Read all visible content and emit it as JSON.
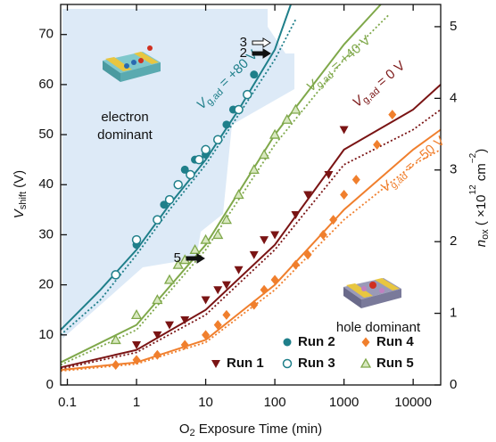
{
  "chart_data": {
    "type": "scatter",
    "x_label": {
      "main": "O",
      "sub": "2",
      "rest": " Exposure Time (min)"
    },
    "y_label": {
      "main": "V",
      "sub": "shift",
      "rest": " (V)"
    },
    "y2_label": {
      "main": "n",
      "sub": "ox",
      "rest": " ( ×10",
      "sup": "12",
      "unit": " cm",
      "sup2": "−2",
      "close": ")"
    },
    "log_x": true,
    "xlim": [
      0.08,
      25000
    ],
    "xticks": [
      0.1,
      1,
      10,
      100,
      1000,
      10000
    ],
    "ylim": [
      0,
      76
    ],
    "yticks": [
      0,
      10,
      20,
      30,
      40,
      50,
      60,
      70
    ],
    "y2lim": [
      0,
      5.31
    ],
    "y2ticks": [
      0,
      1,
      2,
      3,
      4,
      5
    ],
    "series": [
      {
        "name": "Run 2",
        "color": "#1f7f8a",
        "marker": "circle",
        "x": [
          1,
          2.5,
          3,
          5,
          7,
          10,
          20,
          25,
          50
        ],
        "values": [
          28,
          36,
          37,
          43,
          45,
          46,
          52,
          55,
          62
        ]
      },
      {
        "name": "Run 4",
        "color": "#f07f2d",
        "marker": "diamond",
        "x": [
          0.5,
          1,
          2,
          5,
          10,
          15,
          20,
          50,
          70,
          100,
          200,
          300,
          500,
          700,
          1000,
          1500,
          3000,
          5000
        ],
        "values": [
          4,
          5,
          6,
          8,
          10,
          12,
          14,
          16,
          19,
          21,
          24,
          26,
          30,
          33,
          38,
          41,
          48,
          54
        ]
      },
      {
        "name": "Run 1",
        "color": "#7a1414",
        "marker": "down-triangle",
        "x": [
          1,
          2,
          3,
          5,
          10,
          15,
          20,
          30,
          50,
          70,
          100,
          200,
          300,
          600,
          1000
        ],
        "values": [
          8,
          10,
          12,
          13,
          17,
          19,
          20,
          23,
          26,
          29,
          30,
          34,
          38,
          42,
          51
        ]
      },
      {
        "name": "Run 3",
        "color": "#1f7f8a",
        "marker": "open-circle",
        "x": [
          0.5,
          1,
          2,
          3,
          4,
          6,
          8,
          10,
          15,
          30,
          40
        ],
        "values": [
          22,
          29,
          33,
          37,
          40,
          42,
          45,
          47,
          49,
          55,
          58
        ]
      },
      {
        "name": "Run 5",
        "color": "#7fa84a",
        "marker": "triangle",
        "x": [
          0.5,
          1,
          2,
          3,
          4,
          5,
          7,
          10,
          15,
          20,
          30,
          50,
          70,
          100,
          150,
          200
        ],
        "values": [
          9,
          14,
          17,
          21,
          24,
          25,
          27,
          29,
          30,
          33,
          38,
          43,
          46,
          50,
          53,
          55
        ]
      }
    ],
    "fits": [
      {
        "color": "#1f7f8a",
        "style": "solid",
        "x": [
          0.08,
          0.3,
          1,
          3,
          10,
          30,
          100,
          170
        ],
        "values": [
          11,
          19,
          27,
          36,
          45,
          55,
          67,
          76
        ]
      },
      {
        "color": "#1f7f8a",
        "style": "dotted",
        "x": [
          0.08,
          0.3,
          1,
          3,
          10,
          30,
          100,
          200
        ],
        "values": [
          10,
          17,
          26,
          35,
          44,
          54,
          65,
          73
        ]
      },
      {
        "color": "#7fa84a",
        "style": "solid",
        "x": [
          0.08,
          1,
          10,
          100,
          1000,
          3400
        ],
        "values": [
          4.5,
          12,
          28,
          50,
          68,
          76
        ]
      },
      {
        "color": "#7fa84a",
        "style": "dotted",
        "x": [
          0.08,
          1,
          10,
          100,
          1000,
          4500
        ],
        "values": [
          4,
          11,
          27,
          48,
          65,
          74
        ]
      },
      {
        "color": "#7a1414",
        "style": "solid",
        "x": [
          0.08,
          1,
          10,
          100,
          1000,
          10000,
          25000
        ],
        "values": [
          3.5,
          7,
          15,
          28,
          47,
          55,
          60
        ]
      },
      {
        "color": "#7a1414",
        "style": "dotted",
        "x": [
          0.08,
          1,
          10,
          100,
          1000,
          10000,
          25000
        ],
        "values": [
          3.2,
          6.5,
          14,
          27,
          44,
          51,
          55
        ]
      },
      {
        "color": "#f07f2d",
        "style": "solid",
        "x": [
          0.08,
          1,
          10,
          100,
          1000,
          10000,
          25000
        ],
        "values": [
          3,
          4.5,
          9,
          20,
          35,
          47,
          51
        ]
      },
      {
        "color": "#f07f2d",
        "style": "dotted",
        "x": [
          0.08,
          1,
          10,
          100,
          1000,
          10000,
          25000
        ],
        "values": [
          2.8,
          4.2,
          8.5,
          19,
          33,
          44,
          47
        ]
      }
    ],
    "annotations": [
      {
        "main": "V",
        "sub": "g,ad",
        "rest": " = +80 V",
        "color": "#1f7f8a"
      },
      {
        "main": "V",
        "sub": "g,ad",
        "rest": " = +40 V",
        "color": "#7fa84a"
      },
      {
        "main": "V",
        "sub": "g,ad",
        "rest": " = 0 V",
        "color": "#7a1414"
      },
      {
        "main": "V",
        "sub": "g,ad",
        "rest": " = −50 V",
        "color": "#f07f2d"
      }
    ],
    "region_labels": [
      [
        "electron",
        "dominant"
      ],
      [
        "hole dominant"
      ]
    ],
    "arrow_labels": [
      "3",
      "2",
      "5"
    ]
  }
}
